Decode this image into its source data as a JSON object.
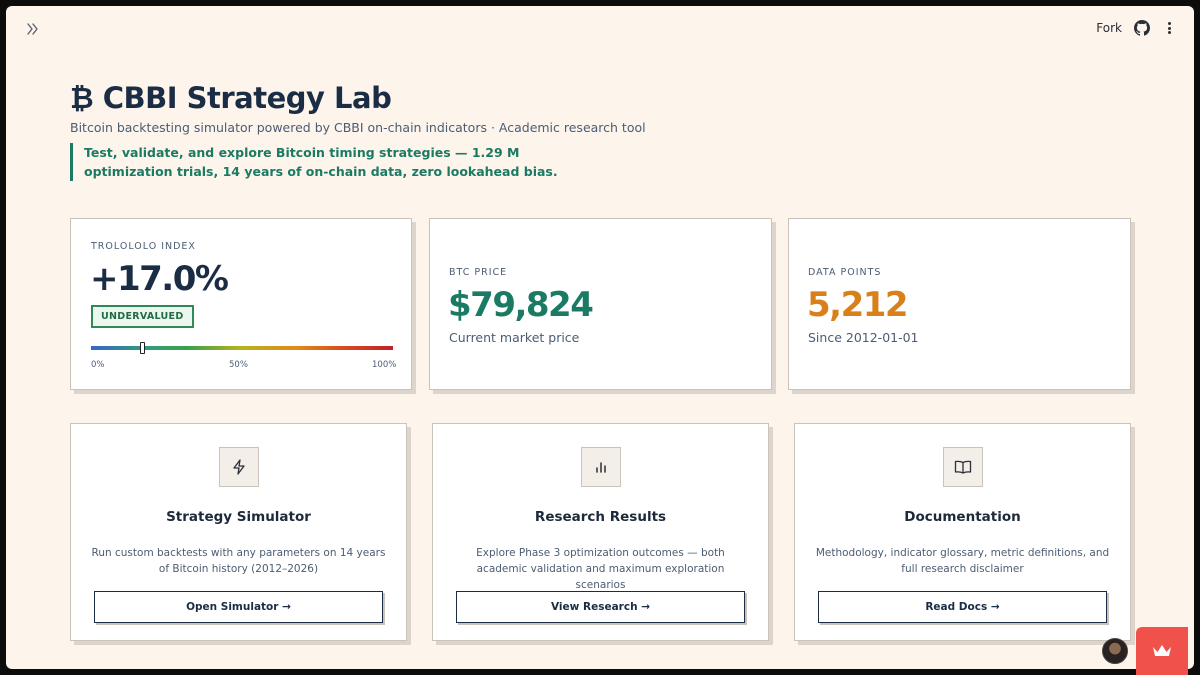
{
  "topbar": {
    "fork_label": "Fork",
    "sidebar_toggle_icon": "double-chevron-right-icon",
    "github_icon": "github-icon",
    "menu_icon": "kebab-menu-icon"
  },
  "header": {
    "title": "₿ CBBI Strategy Lab",
    "subtitle": "Bitcoin backtesting simulator powered by CBBI on-chain indicators · Academic research tool",
    "tagline": "Test, validate, and explore Bitcoin timing strategies — 1.29 M optimization trials, 14 years of on-chain data, zero lookahead bias."
  },
  "stats": {
    "trolololo": {
      "label": "TROLOLOLO INDEX",
      "value": "+17.0%",
      "badge": "UNDERVALUED",
      "gauge_level": 0.17,
      "tick_min": "0%",
      "tick_mid": "50%",
      "tick_max": "100%"
    },
    "btc_price": {
      "label": "BTC PRICE",
      "value": "$79,824",
      "sub": "Current market price"
    },
    "data_points": {
      "label": "DATA POINTS",
      "value": "5,212",
      "sub": "Since 2012-01-01"
    }
  },
  "features": [
    {
      "icon": "lightning-icon",
      "title": "Strategy Simulator",
      "desc": "Run custom backtests with any parameters on 14 years of Bitcoin history (2012–2026)",
      "button": "Open Simulator →"
    },
    {
      "icon": "bar-chart-icon",
      "title": "Research Results",
      "desc": "Explore Phase 3 optimization outcomes — both academic validation and maximum exploration scenarios",
      "button": "View Research →"
    },
    {
      "icon": "open-book-icon",
      "title": "Documentation",
      "desc": "Methodology, indicator glossary, metric definitions, and full research disclaimer",
      "button": "Read Docs →"
    }
  ],
  "colors": {
    "background": "#fdf4ec",
    "teal_accent": "#1b7a63",
    "orange_accent": "#d9801a",
    "navy": "#1b2c45",
    "badge_green": "#2e8b57",
    "crown_red": "#f0524b"
  }
}
